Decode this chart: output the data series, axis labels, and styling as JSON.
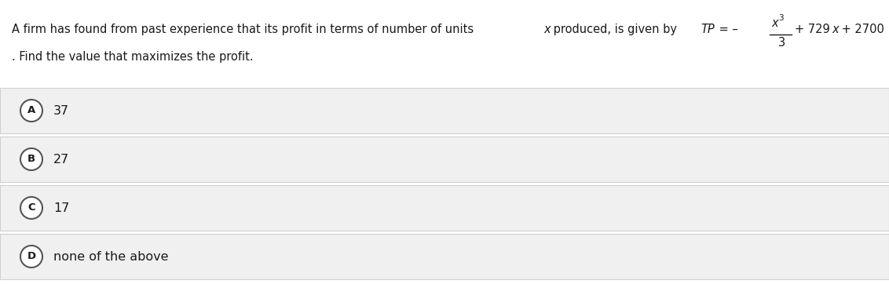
{
  "background_color": "#ffffff",
  "option_bg_color": "#f0f0f0",
  "option_border_color": "#d0d0d0",
  "circle_edge_color": "#555555",
  "text_color": "#1a1a1a",
  "question_font_size": 10.5,
  "option_font_size": 11.5,
  "label_font_size": 9.5,
  "options": [
    {
      "label": "A",
      "text": "37"
    },
    {
      "label": "B",
      "text": "27"
    },
    {
      "label": "C",
      "text": "17"
    },
    {
      "label": "D",
      "text": "none of the above"
    }
  ]
}
